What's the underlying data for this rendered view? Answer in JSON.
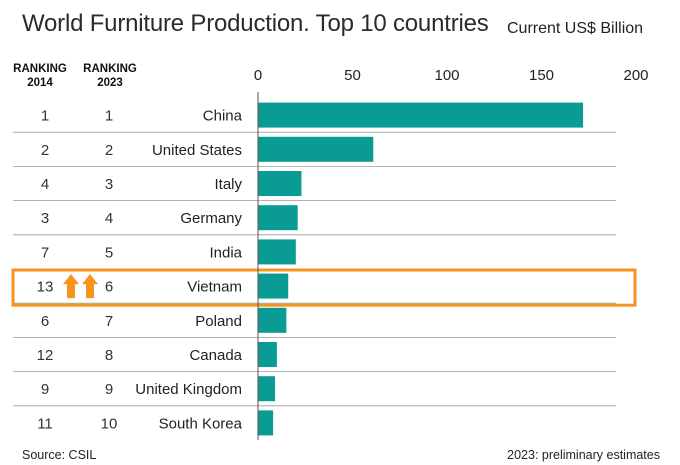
{
  "title": "World Furniture Production. Top 10 countries",
  "unit_label": "Current US$ Billion",
  "rank_headers": {
    "r2014": [
      "RANKING",
      "2014"
    ],
    "r2023": [
      "RANKING",
      "2023"
    ]
  },
  "source": "Source: CSIL",
  "note": "2023: preliminary estimates",
  "colors": {
    "bar": "#0b9b95",
    "highlight": "#f7941d",
    "grid": "#9a9a9a"
  },
  "highlight_country": "Vietnam",
  "highlight_icon": "up-arrow-icon",
  "chart_data": {
    "type": "bar",
    "orientation": "horizontal",
    "categories": [
      "China",
      "United States",
      "Italy",
      "Germany",
      "India",
      "Vietnam",
      "Poland",
      "Canada",
      "United Kingdom",
      "South Korea"
    ],
    "values": [
      172,
      61,
      23,
      21,
      20,
      16,
      15,
      10,
      9,
      8
    ],
    "rank_2014": [
      "1",
      "2",
      "4",
      "3",
      "7",
      "13",
      "6",
      "12",
      "9",
      "11"
    ],
    "rank_2023": [
      "1",
      "2",
      "3",
      "4",
      "5",
      "6",
      "7",
      "8",
      "9",
      "10"
    ],
    "xlim": [
      0,
      200
    ],
    "xticks": [
      0,
      50,
      100,
      150,
      200
    ],
    "grid": false
  }
}
